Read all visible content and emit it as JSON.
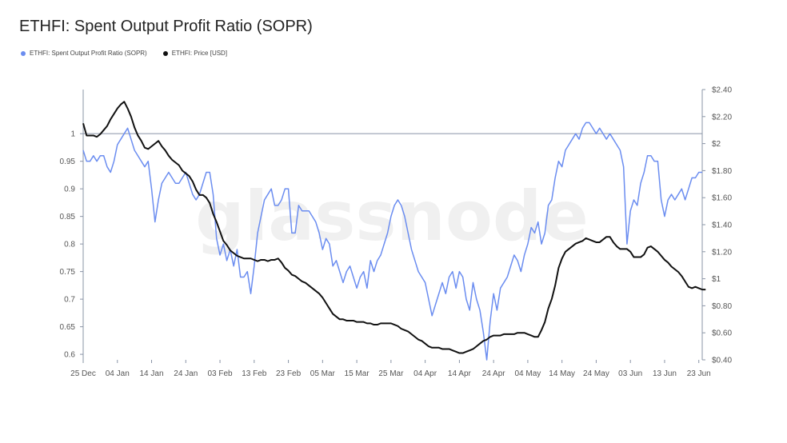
{
  "title": "ETHFI: Spent Output Profit Ratio (SOPR)",
  "watermark": "glassnode",
  "colors": {
    "sopr": "#6b8df0",
    "price": "#111111",
    "axis": "#8a94a6",
    "refline": "#8a94a6"
  },
  "chart_data": {
    "type": "line",
    "title": "ETHFI: Spent Output Profit Ratio (SOPR)",
    "x_tick_labels": [
      "25 Dec",
      "04 Jan",
      "14 Jan",
      "24 Jan",
      "03 Feb",
      "13 Feb",
      "23 Feb",
      "05 Mar",
      "15 Mar",
      "25 Mar",
      "04 Apr",
      "14 Apr",
      "24 Apr",
      "04 May",
      "14 May",
      "24 May",
      "03 Jun",
      "13 Jun",
      "23 Jun"
    ],
    "y_left": {
      "ticks": [
        "0.6",
        "0.65",
        "0.7",
        "0.75",
        "0.8",
        "0.85",
        "0.9",
        "0.95",
        "1"
      ],
      "range": [
        0.59,
        1.08
      ]
    },
    "y_right": {
      "ticks": [
        "$0.40",
        "$0.60",
        "$0.80",
        "$1",
        "$1.20",
        "$1.40",
        "$1.60",
        "$1.80",
        "$2",
        "$2.20",
        "$2.40"
      ],
      "range": [
        0.4,
        2.4
      ]
    },
    "reference_line": {
      "axis": "left",
      "value": 1.0
    },
    "series": [
      {
        "name": "ETHFI: Spent Output Profit Ratio (SOPR)",
        "axis": "left",
        "x_start": "2024-12-25",
        "step_days": 1,
        "values": [
          0.97,
          0.95,
          0.95,
          0.96,
          0.95,
          0.96,
          0.96,
          0.94,
          0.93,
          0.95,
          0.98,
          0.99,
          1.0,
          1.01,
          0.99,
          0.97,
          0.96,
          0.95,
          0.94,
          0.95,
          0.9,
          0.84,
          0.88,
          0.91,
          0.92,
          0.93,
          0.92,
          0.91,
          0.91,
          0.92,
          0.93,
          0.91,
          0.89,
          0.88,
          0.89,
          0.91,
          0.93,
          0.93,
          0.89,
          0.81,
          0.78,
          0.8,
          0.77,
          0.79,
          0.76,
          0.79,
          0.74,
          0.74,
          0.75,
          0.71,
          0.76,
          0.82,
          0.85,
          0.88,
          0.89,
          0.9,
          0.87,
          0.87,
          0.88,
          0.9,
          0.9,
          0.82,
          0.82,
          0.87,
          0.86,
          0.86,
          0.86,
          0.85,
          0.84,
          0.82,
          0.79,
          0.81,
          0.8,
          0.76,
          0.77,
          0.75,
          0.73,
          0.75,
          0.76,
          0.74,
          0.72,
          0.74,
          0.75,
          0.72,
          0.77,
          0.75,
          0.77,
          0.78,
          0.8,
          0.82,
          0.85,
          0.87,
          0.88,
          0.87,
          0.85,
          0.82,
          0.79,
          0.77,
          0.75,
          0.74,
          0.73,
          0.7,
          0.67,
          0.69,
          0.71,
          0.73,
          0.71,
          0.74,
          0.75,
          0.72,
          0.75,
          0.74,
          0.7,
          0.68,
          0.73,
          0.7,
          0.68,
          0.64,
          0.59,
          0.66,
          0.71,
          0.68,
          0.72,
          0.73,
          0.74,
          0.76,
          0.78,
          0.77,
          0.75,
          0.78,
          0.8,
          0.83,
          0.82,
          0.84,
          0.8,
          0.82,
          0.87,
          0.88,
          0.92,
          0.95,
          0.94,
          0.97,
          0.98,
          0.99,
          1.0,
          0.99,
          1.01,
          1.02,
          1.02,
          1.01,
          1.0,
          1.01,
          1.0,
          0.99,
          1.0,
          0.99,
          0.98,
          0.97,
          0.94,
          0.8,
          0.86,
          0.88,
          0.87,
          0.91,
          0.93,
          0.96,
          0.96,
          0.95,
          0.95,
          0.88,
          0.85,
          0.88,
          0.89,
          0.88,
          0.89,
          0.9,
          0.88,
          0.9,
          0.92,
          0.92,
          0.93,
          0.93
        ]
      },
      {
        "name": "ETHFI: Price [USD]",
        "axis": "right",
        "x_start": "2024-12-25",
        "step_days": 1,
        "values": [
          2.15,
          2.06,
          2.06,
          2.06,
          2.05,
          2.07,
          2.1,
          2.13,
          2.18,
          2.22,
          2.26,
          2.29,
          2.31,
          2.26,
          2.2,
          2.12,
          2.06,
          2.02,
          1.97,
          1.96,
          1.98,
          2.0,
          2.02,
          1.98,
          1.95,
          1.91,
          1.88,
          1.86,
          1.84,
          1.8,
          1.78,
          1.76,
          1.72,
          1.66,
          1.62,
          1.62,
          1.6,
          1.56,
          1.48,
          1.42,
          1.35,
          1.28,
          1.25,
          1.21,
          1.19,
          1.17,
          1.16,
          1.15,
          1.15,
          1.15,
          1.14,
          1.13,
          1.14,
          1.14,
          1.13,
          1.14,
          1.14,
          1.15,
          1.12,
          1.08,
          1.06,
          1.03,
          1.02,
          1.0,
          0.98,
          0.97,
          0.95,
          0.93,
          0.91,
          0.89,
          0.86,
          0.82,
          0.78,
          0.74,
          0.72,
          0.7,
          0.7,
          0.69,
          0.69,
          0.69,
          0.68,
          0.68,
          0.68,
          0.67,
          0.67,
          0.66,
          0.66,
          0.67,
          0.67,
          0.67,
          0.67,
          0.66,
          0.65,
          0.63,
          0.62,
          0.61,
          0.59,
          0.57,
          0.55,
          0.54,
          0.52,
          0.5,
          0.49,
          0.49,
          0.49,
          0.48,
          0.48,
          0.48,
          0.47,
          0.46,
          0.45,
          0.45,
          0.46,
          0.47,
          0.48,
          0.5,
          0.52,
          0.54,
          0.55,
          0.57,
          0.58,
          0.58,
          0.58,
          0.59,
          0.59,
          0.59,
          0.59,
          0.6,
          0.6,
          0.6,
          0.59,
          0.58,
          0.57,
          0.57,
          0.62,
          0.68,
          0.78,
          0.85,
          0.95,
          1.08,
          1.15,
          1.2,
          1.22,
          1.24,
          1.26,
          1.27,
          1.28,
          1.3,
          1.29,
          1.28,
          1.27,
          1.27,
          1.29,
          1.31,
          1.31,
          1.27,
          1.24,
          1.22,
          1.22,
          1.22,
          1.2,
          1.16,
          1.16,
          1.16,
          1.18,
          1.23,
          1.24,
          1.22,
          1.2,
          1.17,
          1.14,
          1.12,
          1.09,
          1.07,
          1.05,
          1.02,
          0.98,
          0.94,
          0.93,
          0.94,
          0.93,
          0.92,
          0.92
        ]
      }
    ]
  }
}
